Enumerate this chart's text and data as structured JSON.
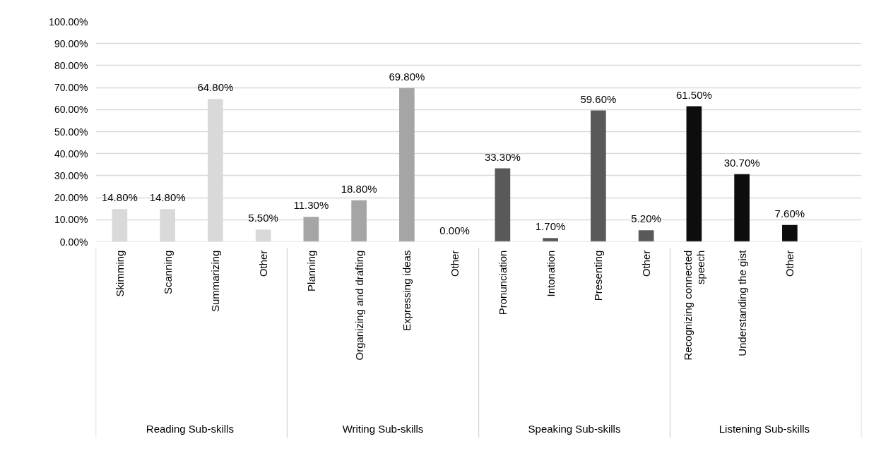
{
  "chart_data": {
    "type": "bar",
    "categories": [
      "Skimming",
      "Scanning",
      "Summarizing",
      "Other",
      "Planning",
      "Organizing and drafting",
      "Expressing ideas",
      "Other",
      "Pronunciation",
      "Intonation",
      "Presenting",
      "Other",
      "Recognizing connected speech",
      "Understanding the gist",
      "Other",
      null
    ],
    "values": [
      14.8,
      14.8,
      64.8,
      5.5,
      11.3,
      18.8,
      69.8,
      0.0,
      33.3,
      1.7,
      59.6,
      5.2,
      61.5,
      30.7,
      7.6,
      null
    ],
    "value_labels": [
      "14.80%",
      "14.80%",
      "64.80%",
      "5.50%",
      "11.30%",
      "18.80%",
      "69.80%",
      "0.00%",
      "33.30%",
      "1.70%",
      "59.60%",
      "5.20%",
      "61.50%",
      "30.70%",
      "7.60%",
      null
    ],
    "colors": [
      "#d9d9d9",
      "#d9d9d9",
      "#d9d9d9",
      "#d9d9d9",
      "#a5a5a5",
      "#a5a5a5",
      "#a5a5a5",
      "#a5a5a5",
      "#595959",
      "#595959",
      "#595959",
      "#595959",
      "#0d0d0d",
      "#0d0d0d",
      "#0d0d0d",
      "#0d0d0d"
    ],
    "annotations": [
      "Reading  Sub-skills",
      "Writing Sub-skills",
      "Speaking Sub-skills",
      "Listening  Sub-skills"
    ],
    "ylim": [
      0,
      100
    ],
    "yticks": [
      {
        "value": 0,
        "label": "0.00%"
      },
      {
        "value": 10,
        "label": "10.00%"
      },
      {
        "value": 20,
        "label": "20.00%"
      },
      {
        "value": 30,
        "label": "30.00%"
      },
      {
        "value": 40,
        "label": "40.00%"
      },
      {
        "value": 50,
        "label": "50.00%"
      },
      {
        "value": 60,
        "label": "60.00%"
      },
      {
        "value": 70,
        "label": "70.00%"
      },
      {
        "value": 80,
        "label": "80.00%"
      },
      {
        "value": 90,
        "label": "90.00%"
      },
      {
        "value": 100,
        "label": "100.00%"
      }
    ],
    "grid": "y"
  }
}
